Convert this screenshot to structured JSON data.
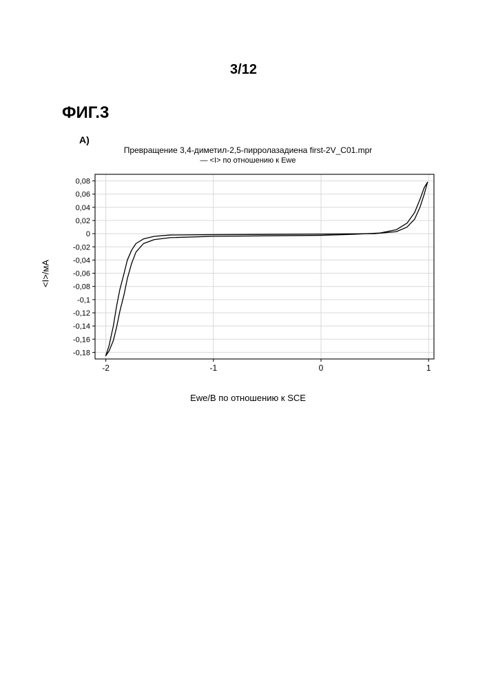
{
  "page_number": "3/12",
  "figure_label": "ФИГ.3",
  "panel_label": "A)",
  "chart": {
    "type": "line",
    "title_line1": "Превращение 3,4-диметил-2,5-пирролазадиена first-2V_C01.mpr",
    "title_line2": "— <I> по отношению к Ewe",
    "ylabel": "<I>/мА",
    "xlabel": "Ewe/В по отношению к SCE",
    "xlim": [
      -2.1,
      1.05
    ],
    "ylim": [
      -0.19,
      0.09
    ],
    "xticks": [
      -2,
      -1,
      0,
      1
    ],
    "xtick_labels": [
      "-2",
      "-1",
      "0",
      "1"
    ],
    "yticks": [
      0.08,
      0.06,
      0.04,
      0.02,
      0,
      -0.02,
      -0.04,
      -0.06,
      -0.08,
      -0.1,
      -0.12,
      -0.14,
      -0.16,
      -0.18
    ],
    "ytick_labels": [
      "0,08",
      "0,06",
      "0,04",
      "0,02",
      "0",
      "-0,02",
      "-0,04",
      "-0,06",
      "-0,08",
      "-0,1",
      "-0,12",
      "-0,14",
      "-0,16",
      "-0,18"
    ],
    "background_color": "#ffffff",
    "axis_color": "#000000",
    "grid_color": "#d8d8d8",
    "line_color": "#000000",
    "line_width": 1.3,
    "tick_fontsize": 11,
    "label_fontsize": 13,
    "title_fontsize": 12,
    "series": {
      "forward": [
        [
          -2.0,
          -0.185
        ],
        [
          -1.97,
          -0.17
        ],
        [
          -1.93,
          -0.14
        ],
        [
          -1.9,
          -0.11
        ],
        [
          -1.87,
          -0.085
        ],
        [
          -1.83,
          -0.06
        ],
        [
          -1.8,
          -0.04
        ],
        [
          -1.76,
          -0.025
        ],
        [
          -1.72,
          -0.015
        ],
        [
          -1.65,
          -0.008
        ],
        [
          -1.55,
          -0.004
        ],
        [
          -1.4,
          -0.002
        ],
        [
          -1.0,
          -0.0015
        ],
        [
          0.0,
          -0.0006
        ],
        [
          0.5,
          0.0
        ],
        [
          0.7,
          0.003
        ],
        [
          0.8,
          0.01
        ],
        [
          0.87,
          0.022
        ],
        [
          0.92,
          0.04
        ],
        [
          0.96,
          0.06
        ],
        [
          0.99,
          0.078
        ]
      ],
      "reverse": [
        [
          0.99,
          0.078
        ],
        [
          0.96,
          0.07
        ],
        [
          0.92,
          0.052
        ],
        [
          0.87,
          0.032
        ],
        [
          0.8,
          0.016
        ],
        [
          0.7,
          0.006
        ],
        [
          0.55,
          0.001
        ],
        [
          0.3,
          -0.001
        ],
        [
          0.0,
          -0.0025
        ],
        [
          -1.0,
          -0.004
        ],
        [
          -1.4,
          -0.006
        ],
        [
          -1.55,
          -0.009
        ],
        [
          -1.65,
          -0.015
        ],
        [
          -1.72,
          -0.028
        ],
        [
          -1.76,
          -0.045
        ],
        [
          -1.8,
          -0.068
        ],
        [
          -1.83,
          -0.092
        ],
        [
          -1.87,
          -0.118
        ],
        [
          -1.9,
          -0.142
        ],
        [
          -1.93,
          -0.162
        ],
        [
          -1.97,
          -0.178
        ],
        [
          -2.0,
          -0.185
        ]
      ]
    }
  }
}
